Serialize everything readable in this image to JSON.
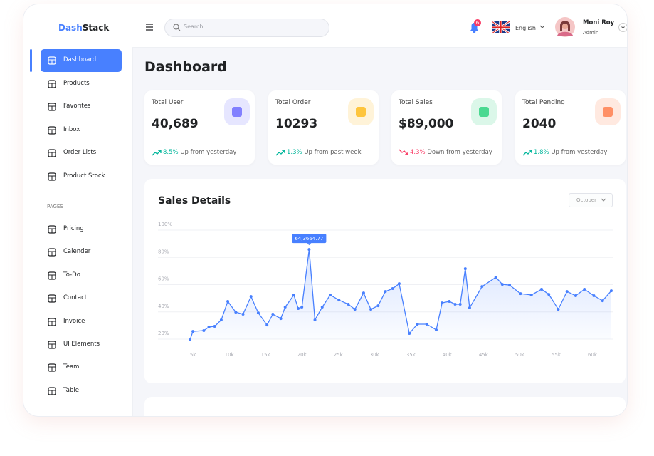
{
  "brand": {
    "prefix": "Dash",
    "suffix": "Stack"
  },
  "search_placeholder": "Search",
  "notification_count": "6",
  "language": "English",
  "user": {
    "name": "Moni Roy",
    "role": "Admin"
  },
  "sidebar": {
    "main": [
      "Dashboard",
      "Products",
      "Favorites",
      "Inbox",
      "Order Lists",
      "Product Stock"
    ],
    "section": "PAGES",
    "pages": [
      "Pricing",
      "Calender",
      "To-Do",
      "Contact",
      "Invoice",
      "UI Elements",
      "Team",
      "Table"
    ]
  },
  "page_title": "Dashboard",
  "cards": [
    {
      "title": "Total User",
      "value": "40,689",
      "change": "8.5%",
      "note": "Up from yesterday",
      "trend": "up",
      "color": "#8280ff"
    },
    {
      "title": "Total Order",
      "value": "10293",
      "change": "1.3%",
      "note": "Up from past week",
      "trend": "up",
      "color": "#fec53d"
    },
    {
      "title": "Total Sales",
      "value": "$89,000",
      "change": "4.3%",
      "note": "Down from yesterday",
      "trend": "down",
      "color": "#4ad991"
    },
    {
      "title": "Total Pending",
      "value": "2040",
      "change": "1.8%",
      "note": "Up from yesterday",
      "trend": "up",
      "color": "#ff9066"
    }
  ],
  "chart_data": {
    "type": "line",
    "title": "Sales Details",
    "filter": "October",
    "annotation": "64,3664.77",
    "color": "#4880ff",
    "grid": true,
    "x": [
      4.6,
      5.0,
      6.5,
      7.2,
      8.0,
      8.9,
      9.8,
      10.9,
      11.9,
      13.0,
      14.0,
      15.2,
      16.0,
      17.1,
      17.7,
      18.9,
      19.5,
      20.0,
      21.0,
      21.8,
      22.8,
      23.9,
      25.1,
      26.4,
      27.3,
      28.5,
      29.5,
      30.5,
      31.5,
      32.5,
      33.4,
      34.8,
      35.9,
      37.2,
      38.5,
      39.3,
      40.3,
      41.1,
      41.8,
      42.5,
      43.1,
      44.8,
      46.7,
      47.6,
      48.6,
      50.1,
      51.6,
      53.0,
      54.0,
      55.3,
      56.5,
      57.7,
      58.9,
      60.2,
      61.4,
      62.6
    ],
    "values": [
      19.5,
      25.7,
      26.3,
      28.9,
      29.4,
      34.1,
      47.7,
      39.8,
      38.3,
      51.3,
      39.3,
      30.4,
      38.3,
      35.1,
      43.5,
      52.4,
      42.5,
      43.5,
      85.8,
      34.1,
      43.5,
      52.4,
      48.7,
      45.6,
      41.9,
      53.9,
      41.9,
      44.5,
      55.0,
      57.1,
      60.7,
      24.2,
      31.0,
      31.0,
      26.8,
      46.6,
      47.7,
      45.6,
      45.6,
      71.7,
      43.0,
      58.6,
      65.4,
      60.2,
      59.7,
      53.4,
      52.4,
      56.6,
      52.9,
      41.9,
      55.0,
      51.9,
      56.6,
      51.9,
      48.2,
      55.5
    ],
    "xlim": [
      4.6,
      62.8
    ],
    "ylim": [
      20,
      100
    ],
    "xticks": [
      {
        "value": 5,
        "label": "5k"
      },
      {
        "value": 10,
        "label": "10k"
      },
      {
        "value": 15,
        "label": "15k"
      },
      {
        "value": 20,
        "label": "20k"
      },
      {
        "value": 25,
        "label": "25k"
      },
      {
        "value": 30,
        "label": "30k"
      },
      {
        "value": 35,
        "label": "35k"
      },
      {
        "value": 40,
        "label": "40k"
      },
      {
        "value": 45,
        "label": "45k"
      },
      {
        "value": 50,
        "label": "50k"
      },
      {
        "value": 55,
        "label": "55k"
      },
      {
        "value": 60,
        "label": "60k"
      }
    ],
    "yticks": [
      {
        "value": 20,
        "label": "20%"
      },
      {
        "value": 40,
        "label": "40%"
      },
      {
        "value": 60,
        "label": "60%"
      },
      {
        "value": 80,
        "label": "80%"
      },
      {
        "value": 100,
        "label": "100%"
      }
    ]
  }
}
